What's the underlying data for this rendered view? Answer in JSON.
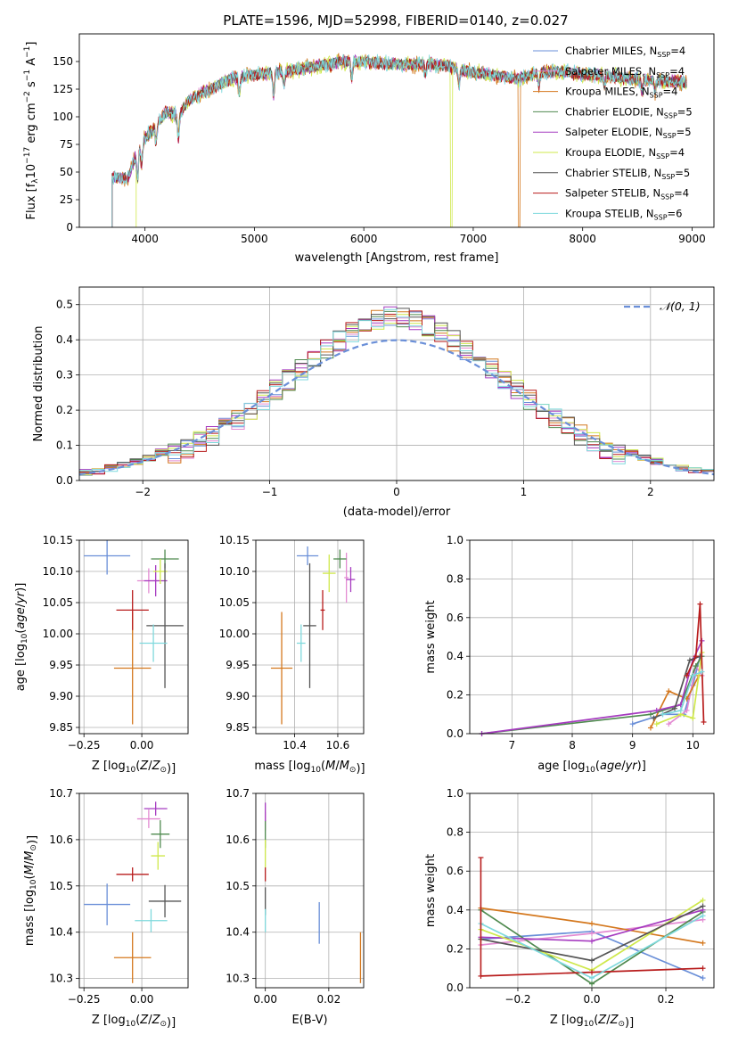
{
  "title": "PLATE=1596, MJD=52998, FIBERID=0140, z=0.027",
  "colors": [
    "#6a8fd8",
    "#e38bd2",
    "#d4781e",
    "#4f8a4f",
    "#a63bc0",
    "#cfe84b",
    "#555555",
    "#b81c1c",
    "#7fd9dd"
  ],
  "chart_data": [
    {
      "id": "spectrum",
      "type": "line",
      "xlabel": "wavelength [Angstrom, rest frame]",
      "ylabel": "Flux [f_λ 10^-17 erg cm^-2 s^-1 A^-1]",
      "xlim": [
        3400,
        9200
      ],
      "ylim": [
        0,
        175
      ],
      "xticks": [
        4000,
        5000,
        6000,
        7000,
        8000,
        9000
      ],
      "yticks": [
        0,
        25,
        50,
        75,
        100,
        125,
        150
      ],
      "legend": "top-right",
      "continuum": [
        [
          3700,
          45
        ],
        [
          3850,
          45
        ],
        [
          3950,
          75
        ],
        [
          4100,
          92
        ],
        [
          4200,
          105
        ],
        [
          4300,
          100
        ],
        [
          4400,
          115
        ],
        [
          4600,
          125
        ],
        [
          4800,
          135
        ],
        [
          5000,
          138
        ],
        [
          5200,
          140
        ],
        [
          5400,
          143
        ],
        [
          5600,
          146
        ],
        [
          5800,
          150
        ],
        [
          6000,
          150
        ],
        [
          6200,
          148
        ],
        [
          6400,
          147
        ],
        [
          6600,
          148
        ],
        [
          6800,
          145
        ],
        [
          7000,
          140
        ],
        [
          7200,
          138
        ],
        [
          7400,
          134
        ],
        [
          7600,
          140
        ],
        [
          7800,
          141
        ],
        [
          8000,
          138
        ],
        [
          8200,
          137
        ],
        [
          8500,
          134
        ],
        [
          8800,
          132
        ],
        [
          8950,
          131
        ]
      ],
      "features": [
        [
          3933,
          -25
        ],
        [
          3968,
          -20
        ],
        [
          4102,
          -15
        ],
        [
          4305,
          -20
        ],
        [
          4861,
          -15
        ],
        [
          5175,
          -20
        ],
        [
          5270,
          -12
        ],
        [
          5890,
          -15
        ],
        [
          6563,
          -10
        ],
        [
          6870,
          -15
        ],
        [
          7600,
          -12
        ],
        [
          8200,
          -8
        ],
        [
          8542,
          -10
        ],
        [
          8662,
          -10
        ]
      ],
      "cutoffs": [
        {
          "series": 5,
          "x": 6800
        },
        {
          "series": 2,
          "x": 7420
        }
      ],
      "series": [
        {
          "name": "Chabrier MILES",
          "nssp": "4"
        },
        {
          "name": "Salpeter MILES",
          "nssp": "4"
        },
        {
          "name": "Kroupa MILES",
          "nssp": "4"
        },
        {
          "name": "Chabrier ELODIE",
          "nssp": "5"
        },
        {
          "name": "Salpeter ELODIE",
          "nssp": "5"
        },
        {
          "name": "Kroupa ELODIE",
          "nssp": "4"
        },
        {
          "name": "Chabrier STELIB",
          "nssp": "5"
        },
        {
          "name": "Salpeter STELIB",
          "nssp": "4"
        },
        {
          "name": "Kroupa STELIB",
          "nssp": "6"
        }
      ]
    },
    {
      "id": "residuals",
      "type": "histogram",
      "xlabel": "(data-model)/error",
      "ylabel": "Normed distribution",
      "xlim": [
        -2.5,
        2.5
      ],
      "ylim": [
        0,
        0.55
      ],
      "xticks": [
        -2,
        -1,
        0,
        1,
        2
      ],
      "yticks": [
        0.0,
        0.1,
        0.2,
        0.3,
        0.4,
        0.5
      ],
      "grid": true,
      "bin_width": 0.1,
      "legend": "top-right",
      "legend_label": "𝒩(0, 1)"
    },
    {
      "id": "age-vs-Z",
      "type": "errorbar",
      "xlabel": "Z [log10(Z/Z⊙)]",
      "ylabel": "age  [log10(age/yr)]",
      "xlim": [
        -0.27,
        0.2
      ],
      "ylim": [
        9.84,
        10.15
      ],
      "xticks": [
        -0.25,
        0.0
      ],
      "xtick_labels": [
        "−0.25",
        "0.00"
      ],
      "yticks": [
        9.85,
        9.9,
        9.95,
        10.0,
        10.05,
        10.1,
        10.15
      ],
      "ytick_labels": [
        "9.85",
        "9.90",
        "9.95",
        "10.00",
        "10.05",
        "10.10",
        "10.15"
      ],
      "grid": true,
      "points": [
        {
          "s": 0,
          "x": -0.15,
          "y": 10.125,
          "xe": 0.1,
          "ye": 0.03
        },
        {
          "s": 1,
          "x": 0.03,
          "y": 10.085,
          "xe": 0.05,
          "ye": 0.02
        },
        {
          "s": 2,
          "x": -0.04,
          "y": 9.945,
          "xe": 0.08,
          "ye": 0.09
        },
        {
          "s": 3,
          "x": 0.1,
          "y": 10.12,
          "xe": 0.06,
          "ye": 0.015
        },
        {
          "s": 4,
          "x": 0.06,
          "y": 10.085,
          "xe": 0.05,
          "ye": 0.025
        },
        {
          "s": 5,
          "x": 0.08,
          "y": 10.1,
          "xe": 0.03,
          "ye": 0.02
        },
        {
          "s": 6,
          "x": 0.1,
          "y": 10.013,
          "xe": 0.08,
          "ye": 0.1
        },
        {
          "s": 7,
          "x": -0.04,
          "y": 10.038,
          "xe": 0.07,
          "ye": 0.032
        },
        {
          "s": 8,
          "x": 0.05,
          "y": 9.985,
          "xe": 0.06,
          "ye": 0.03
        }
      ]
    },
    {
      "id": "age-vs-mass",
      "type": "errorbar",
      "xlabel": "mass [log10(M/M⊙)]",
      "ylabel": "",
      "xlim": [
        10.22,
        10.72
      ],
      "ylim": [
        9.84,
        10.15
      ],
      "xticks": [
        10.4,
        10.6
      ],
      "xtick_labels": [
        "10.4",
        "10.6"
      ],
      "yticks": [
        9.85,
        9.9,
        9.95,
        10.0,
        10.05,
        10.1,
        10.15
      ],
      "ytick_labels": [
        "9.85",
        "9.90",
        "9.95",
        "10.00",
        "10.05",
        "10.10",
        "10.15"
      ],
      "grid": true,
      "points": [
        {
          "s": 0,
          "x": 10.46,
          "y": 10.125,
          "xe": 0.05,
          "ye": 0.015
        },
        {
          "s": 1,
          "x": 10.64,
          "y": 10.09,
          "xe": 0.01,
          "ye": 0.04
        },
        {
          "s": 2,
          "x": 10.34,
          "y": 9.945,
          "xe": 0.05,
          "ye": 0.09
        },
        {
          "s": 3,
          "x": 10.61,
          "y": 10.12,
          "xe": 0.03,
          "ye": 0.015
        },
        {
          "s": 4,
          "x": 10.66,
          "y": 10.087,
          "xe": 0.02,
          "ye": 0.02
        },
        {
          "s": 5,
          "x": 10.56,
          "y": 10.097,
          "xe": 0.03,
          "ye": 0.03
        },
        {
          "s": 6,
          "x": 10.47,
          "y": 10.013,
          "xe": 0.03,
          "ye": 0.1
        },
        {
          "s": 7,
          "x": 10.53,
          "y": 10.038,
          "xe": 0.01,
          "ye": 0.032
        },
        {
          "s": 8,
          "x": 10.43,
          "y": 9.985,
          "xe": 0.02,
          "ye": 0.03
        }
      ]
    },
    {
      "id": "weight-vs-age",
      "type": "line",
      "xlabel": "age  [log10(age/yr)]",
      "ylabel": "mass weight",
      "xlim": [
        6.3,
        10.35
      ],
      "ylim": [
        0,
        1.0
      ],
      "xticks": [
        7,
        8,
        9,
        10
      ],
      "yticks": [
        0.0,
        0.2,
        0.4,
        0.6,
        0.8,
        1.0
      ],
      "grid": true,
      "series": [
        {
          "s": 0,
          "points": [
            [
              9.0,
              0.05
            ],
            [
              9.5,
              0.1
            ],
            [
              9.85,
              0.1
            ],
            [
              10.0,
              0.25
            ],
            [
              10.12,
              0.4
            ]
          ]
        },
        {
          "s": 1,
          "points": [
            [
              9.6,
              0.05
            ],
            [
              9.9,
              0.12
            ],
            [
              10.05,
              0.35
            ],
            [
              10.15,
              0.3
            ]
          ]
        },
        {
          "s": 2,
          "points": [
            [
              9.3,
              0.03
            ],
            [
              9.6,
              0.22
            ],
            [
              9.9,
              0.18
            ],
            [
              10.1,
              0.3
            ]
          ]
        },
        {
          "s": 3,
          "points": [
            [
              6.5,
              0.0
            ],
            [
              9.3,
              0.1
            ],
            [
              9.8,
              0.15
            ],
            [
              10.05,
              0.35
            ],
            [
              10.15,
              0.4
            ]
          ]
        },
        {
          "s": 4,
          "points": [
            [
              6.5,
              0.0
            ],
            [
              9.4,
              0.12
            ],
            [
              9.8,
              0.15
            ],
            [
              10.0,
              0.38
            ],
            [
              10.15,
              0.48
            ]
          ]
        },
        {
          "s": 5,
          "points": [
            [
              9.4,
              0.05
            ],
            [
              9.8,
              0.1
            ],
            [
              10.0,
              0.08
            ],
            [
              10.15,
              0.42
            ]
          ]
        },
        {
          "s": 6,
          "points": [
            [
              9.35,
              0.08
            ],
            [
              9.7,
              0.13
            ],
            [
              9.95,
              0.38
            ],
            [
              10.12,
              0.4
            ]
          ]
        },
        {
          "s": 7,
          "points": [
            [
              9.9,
              0.3
            ],
            [
              10.05,
              0.4
            ],
            [
              10.12,
              0.67
            ],
            [
              10.18,
              0.06
            ]
          ]
        },
        {
          "s": 8,
          "points": [
            [
              9.5,
              0.1
            ],
            [
              9.8,
              0.12
            ],
            [
              10.0,
              0.3
            ],
            [
              10.15,
              0.32
            ]
          ]
        }
      ]
    },
    {
      "id": "mass-vs-Z",
      "type": "errorbar",
      "xlabel": "Z [log10(Z/Z⊙)]",
      "ylabel": "mass [log10(M/M⊙)]",
      "xlim": [
        -0.27,
        0.2
      ],
      "ylim": [
        10.28,
        10.7
      ],
      "xticks": [
        -0.25,
        0.0
      ],
      "xtick_labels": [
        "−0.25",
        "0.00"
      ],
      "yticks": [
        10.3,
        10.4,
        10.5,
        10.6,
        10.7
      ],
      "ytick_labels": [
        "10.3",
        "10.4",
        "10.5",
        "10.6",
        "10.7"
      ],
      "grid": true,
      "points": [
        {
          "s": 0,
          "x": -0.15,
          "y": 10.46,
          "xe": 0.1,
          "ye": 0.045
        },
        {
          "s": 1,
          "x": 0.03,
          "y": 10.645,
          "xe": 0.05,
          "ye": 0.02
        },
        {
          "s": 2,
          "x": -0.04,
          "y": 10.345,
          "xe": 0.08,
          "ye": 0.055
        },
        {
          "s": 3,
          "x": 0.08,
          "y": 10.612,
          "xe": 0.04,
          "ye": 0.03
        },
        {
          "s": 4,
          "x": 0.06,
          "y": 10.667,
          "xe": 0.05,
          "ye": 0.015
        },
        {
          "s": 5,
          "x": 0.07,
          "y": 10.565,
          "xe": 0.03,
          "ye": 0.03
        },
        {
          "s": 6,
          "x": 0.1,
          "y": 10.467,
          "xe": 0.07,
          "ye": 0.035
        },
        {
          "s": 7,
          "x": -0.04,
          "y": 10.525,
          "xe": 0.07,
          "ye": 0.015
        },
        {
          "s": 8,
          "x": 0.04,
          "y": 10.425,
          "xe": 0.07,
          "ye": 0.025
        }
      ]
    },
    {
      "id": "mass-vs-ebv",
      "type": "errorbar",
      "xlabel": "E(B-V)",
      "ylabel": "",
      "xlim": [
        -0.003,
        0.031
      ],
      "ylim": [
        10.28,
        10.7
      ],
      "xticks": [
        0.0,
        0.02
      ],
      "xtick_labels": [
        "0.00",
        "0.02"
      ],
      "yticks": [
        10.3,
        10.4,
        10.5,
        10.6,
        10.7
      ],
      "ytick_labels": [
        "10.3",
        "10.4",
        "10.5",
        "10.6",
        "10.7"
      ],
      "grid": true,
      "points": [
        {
          "s": 0,
          "x": 0.017,
          "y": 10.42,
          "xe": 0.0,
          "ye": 0.045
        },
        {
          "s": 1,
          "x": 0.0,
          "y": 10.64,
          "xe": 0.0,
          "ye": 0.02
        },
        {
          "s": 2,
          "x": 0.03,
          "y": 10.345,
          "xe": 0.0,
          "ye": 0.055
        },
        {
          "s": 3,
          "x": 0.0,
          "y": 10.612,
          "xe": 0.0,
          "ye": 0.03
        },
        {
          "s": 4,
          "x": 0.0,
          "y": 10.66,
          "xe": 0.0,
          "ye": 0.02
        },
        {
          "s": 5,
          "x": 0.0,
          "y": 10.57,
          "xe": 0.0,
          "ye": 0.03
        },
        {
          "s": 6,
          "x": 0.0,
          "y": 10.467,
          "xe": 0.0,
          "ye": 0.03
        },
        {
          "s": 7,
          "x": 0.0,
          "y": 10.525,
          "xe": 0.0,
          "ye": 0.015
        },
        {
          "s": 8,
          "x": 0.0,
          "y": 10.425,
          "xe": 0.0,
          "ye": 0.025
        }
      ]
    },
    {
      "id": "weight-vs-Z",
      "type": "line",
      "xlabel": "Z [log10(Z/Z⊙)]",
      "ylabel": "mass weight",
      "xlim": [
        -0.33,
        0.33
      ],
      "ylim": [
        0,
        1.0
      ],
      "xticks": [
        -0.2,
        0.0,
        0.2
      ],
      "xtick_labels": [
        "−0.2",
        "0.0",
        "0.2"
      ],
      "yticks": [
        0.0,
        0.2,
        0.4,
        0.6,
        0.8,
        1.0
      ],
      "grid": true,
      "series": [
        {
          "s": 0,
          "points": [
            [
              -0.3,
              0.25
            ],
            [
              0.0,
              0.29
            ],
            [
              0.3,
              0.05
            ]
          ]
        },
        {
          "s": 1,
          "points": [
            [
              -0.3,
              0.22
            ],
            [
              0.0,
              0.28
            ],
            [
              0.3,
              0.35
            ]
          ]
        },
        {
          "s": 2,
          "points": [
            [
              -0.3,
              0.41
            ],
            [
              0.0,
              0.33
            ],
            [
              0.3,
              0.23
            ]
          ]
        },
        {
          "s": 3,
          "points": [
            [
              -0.3,
              0.4
            ],
            [
              0.0,
              0.02
            ],
            [
              0.3,
              0.39
            ]
          ]
        },
        {
          "s": 4,
          "points": [
            [
              -0.3,
              0.26
            ],
            [
              0.0,
              0.24
            ],
            [
              0.3,
              0.4
            ]
          ]
        },
        {
          "s": 5,
          "points": [
            [
              -0.3,
              0.3
            ],
            [
              0.0,
              0.09
            ],
            [
              0.3,
              0.45
            ]
          ]
        },
        {
          "s": 6,
          "points": [
            [
              -0.3,
              0.25
            ],
            [
              0.0,
              0.14
            ],
            [
              0.3,
              0.42
            ]
          ]
        },
        {
          "s": 7,
          "points": [
            [
              -0.3,
              0.06
            ],
            [
              0.0,
              0.08
            ],
            [
              0.3,
              0.1
            ]
          ]
        },
        {
          "s": 8,
          "points": [
            [
              -0.3,
              0.33
            ],
            [
              0.0,
              0.05
            ],
            [
              0.3,
              0.37
            ]
          ]
        }
      ]
    }
  ]
}
